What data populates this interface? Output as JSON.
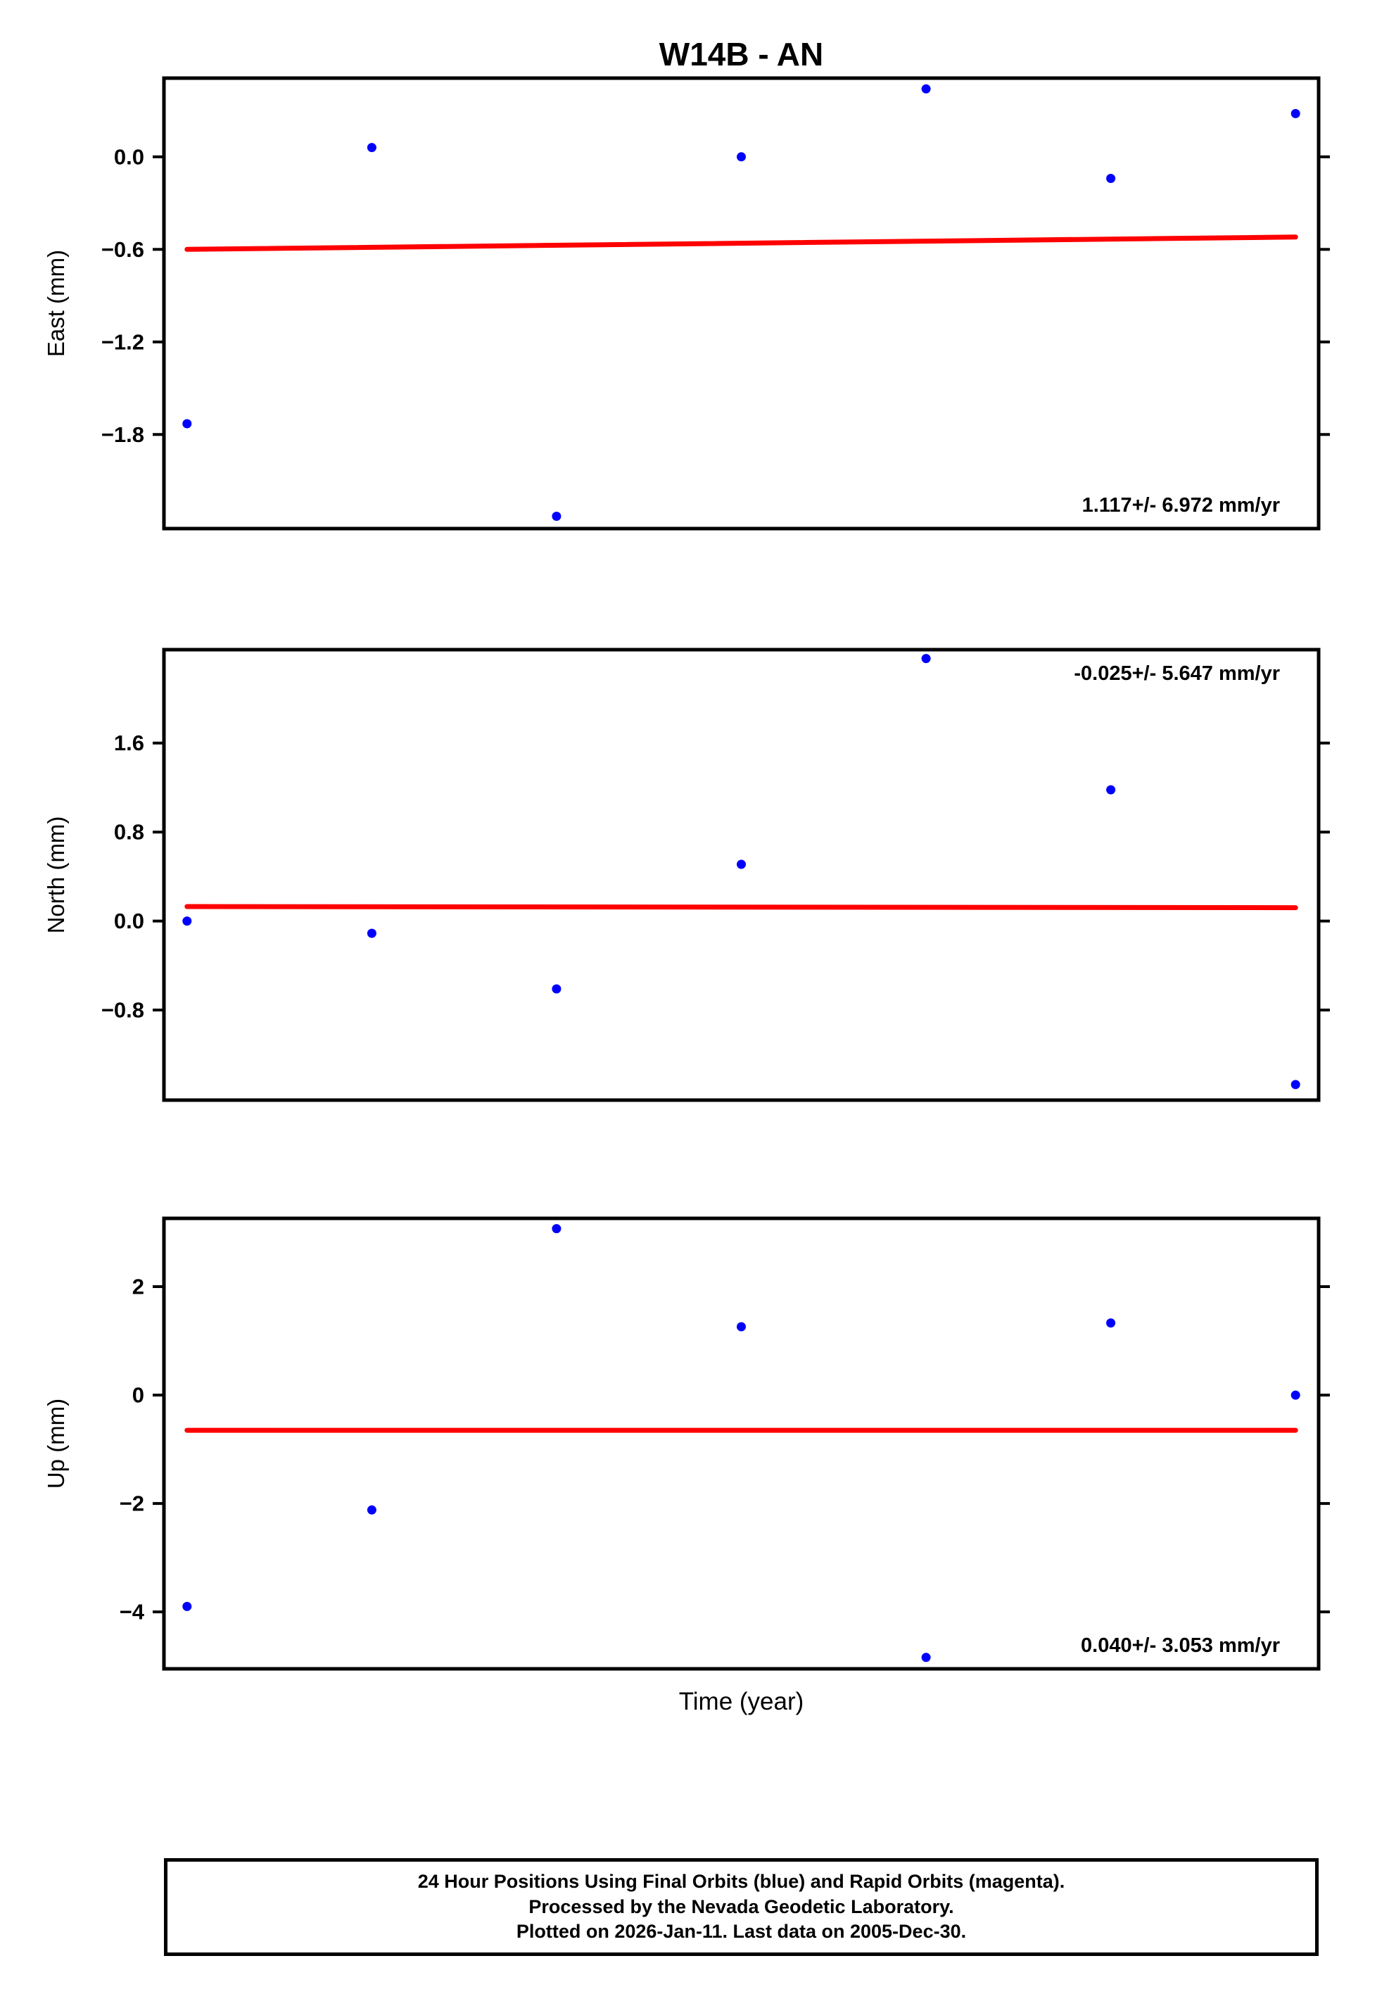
{
  "title": "W14B - AN",
  "xlabel": "Time (year)",
  "caption": {
    "line1": "24 Hour Positions Using Final Orbits (blue) and Rapid Orbits (magenta).",
    "line2": "Processed by the Nevada Geodetic Laboratory.",
    "line3": "Plotted on 2026-Jan-11. Last data on 2005-Dec-30."
  },
  "colors": {
    "points": "#0000ff",
    "trend": "#ff0000",
    "frame": "#000000"
  },
  "chart_data": [
    {
      "type": "scatter",
      "ylabel": "East (mm)",
      "annotation": "1.117+/- 6.972 mm/yr",
      "annotation_pos": "bottom-right",
      "ylim": [
        -2.41,
        0.51
      ],
      "yticks": [
        0.0,
        -0.6,
        -1.2,
        -1.8
      ],
      "ytick_labels": [
        "0.0",
        "−0.6",
        "−1.2",
        "−1.8"
      ],
      "x_unit": "fraction of x-axis (no x tick labels shown)",
      "x": [
        0.02,
        0.18,
        0.34,
        0.5,
        0.66,
        0.82,
        0.98
      ],
      "y": [
        -1.73,
        0.06,
        -2.33,
        0.0,
        0.44,
        -0.14,
        0.28
      ],
      "trend": {
        "x": [
          0.02,
          0.98
        ],
        "y": [
          -0.6,
          -0.52
        ]
      },
      "grid": false,
      "legend": false
    },
    {
      "type": "scatter",
      "ylabel": "North (mm)",
      "annotation": "-0.025+/- 5.647 mm/yr",
      "annotation_pos": "top-right",
      "ylim": [
        -1.61,
        2.44
      ],
      "yticks": [
        1.6,
        0.8,
        0.0,
        -0.8
      ],
      "ytick_labels": [
        "1.6",
        "0.8",
        "0.0",
        "−0.8"
      ],
      "x_unit": "fraction of x-axis (no x tick labels shown)",
      "x": [
        0.02,
        0.18,
        0.34,
        0.5,
        0.66,
        0.82,
        0.98
      ],
      "y": [
        0.0,
        -0.11,
        -0.61,
        0.51,
        2.36,
        1.18,
        -1.47
      ],
      "trend": {
        "x": [
          0.02,
          0.98
        ],
        "y": [
          0.13,
          0.12
        ]
      },
      "grid": false,
      "legend": false
    },
    {
      "type": "scatter",
      "ylabel": "Up (mm)",
      "annotation": "0.040+/- 3.053 mm/yr",
      "annotation_pos": "bottom-right",
      "ylim": [
        -5.05,
        3.26
      ],
      "yticks": [
        2,
        0,
        -2,
        -4
      ],
      "ytick_labels": [
        "2",
        "0",
        "−2",
        "−4"
      ],
      "x_unit": "fraction of x-axis (no x tick labels shown)",
      "x": [
        0.02,
        0.18,
        0.34,
        0.5,
        0.66,
        0.82,
        0.98
      ],
      "y": [
        -3.9,
        -2.12,
        3.07,
        1.26,
        -4.84,
        1.33,
        0.0
      ],
      "trend": {
        "x": [
          0.02,
          0.98
        ],
        "y": [
          -0.65,
          -0.65
        ]
      },
      "grid": false,
      "legend": false
    }
  ]
}
